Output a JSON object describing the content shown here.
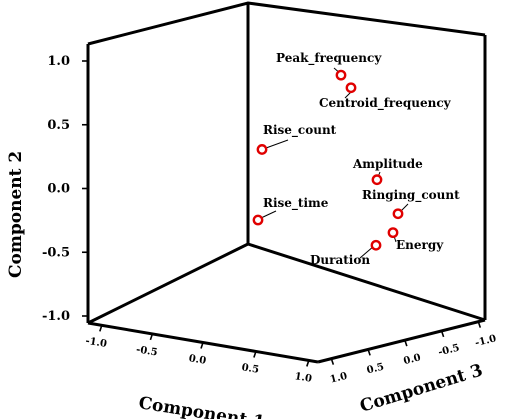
{
  "chart_data": {
    "type": "scatter",
    "projection": "3d",
    "xlabel": "Component 1",
    "ylabel": "Component 2",
    "zlabel": "Component 3",
    "xlim": [
      -1.0,
      1.0
    ],
    "ylim": [
      -1.0,
      1.0
    ],
    "zlim": [
      -1.0,
      1.0
    ],
    "xticks": [
      "-1.0",
      "-0.5",
      "0.0",
      "0.5",
      "1.0"
    ],
    "yticks": [
      "1.0",
      "0.5",
      "0.0",
      "-0.5",
      "-1.0"
    ],
    "zticks": [
      "1.0",
      "0.5",
      "0.0",
      "-0.5",
      "-1.0"
    ],
    "ytick_values": [
      1.0,
      0.5,
      0.0,
      -0.5,
      -1.0
    ],
    "points": [
      {
        "label": "Peak_frequency",
        "y": 0.88
      },
      {
        "label": "Centroid_frequency",
        "y": 0.78
      },
      {
        "label": "Rise_count",
        "y": 0.29
      },
      {
        "label": "Amplitude",
        "y": 0.05
      },
      {
        "label": "Ringing_count",
        "y": -0.22
      },
      {
        "label": "Rise_time",
        "y": -0.27
      },
      {
        "label": "Energy",
        "y": -0.37
      },
      {
        "label": "Duration",
        "y": -0.47
      }
    ],
    "marker_color": "#e00000",
    "grid": false
  }
}
